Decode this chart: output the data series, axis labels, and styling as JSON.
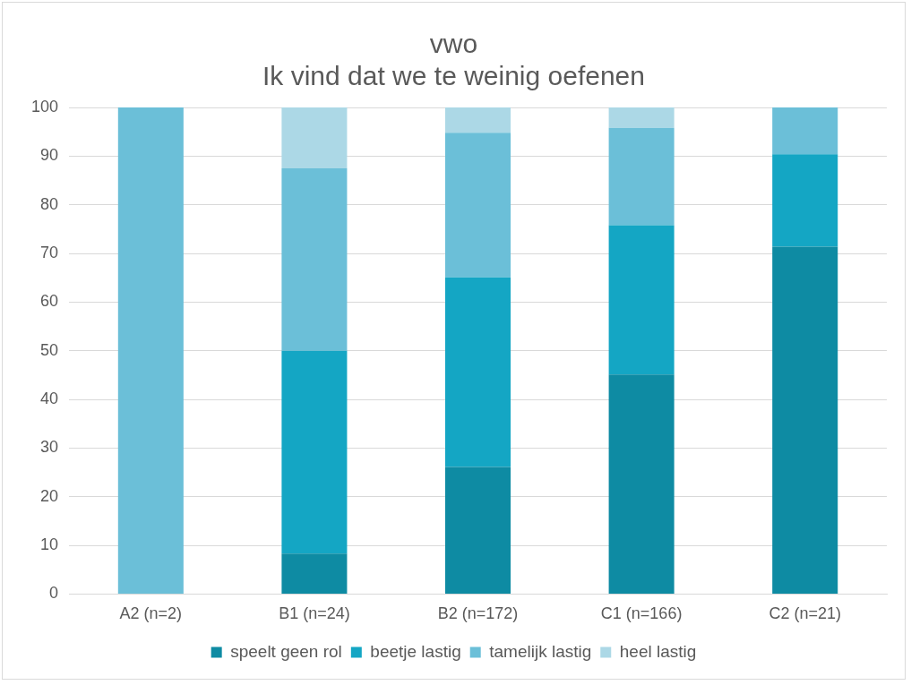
{
  "chart_data": {
    "type": "bar",
    "title": "vwo\nIk vind dat we te weinig oefenen",
    "categories": [
      "A2 (n=2)",
      "B1 (n=24)",
      "B2 (n=172)",
      "C1 (n=166)",
      "C2 (n=21)"
    ],
    "stacked": true,
    "series": [
      {
        "name": "speelt geen rol",
        "color": "#0e8ba3",
        "values": [
          0,
          8.3,
          26.1,
          45.1,
          71.4
        ]
      },
      {
        "name": "beetje lastig",
        "color": "#14a6c4",
        "values": [
          0,
          41.7,
          39,
          30.7,
          19
        ]
      },
      {
        "name": "tamelijk lastig",
        "color": "#6bbfd8",
        "values": [
          100,
          37.5,
          29.7,
          20,
          9.6
        ]
      },
      {
        "name": "heel lastig",
        "color": "#acd8e6",
        "values": [
          0,
          12.5,
          5.2,
          4.2,
          0
        ]
      }
    ],
    "ylim": [
      0,
      100
    ],
    "yticks": [
      0,
      10,
      20,
      30,
      40,
      50,
      60,
      70,
      80,
      90,
      100
    ],
    "grid": "y",
    "legend": "bottom"
  }
}
